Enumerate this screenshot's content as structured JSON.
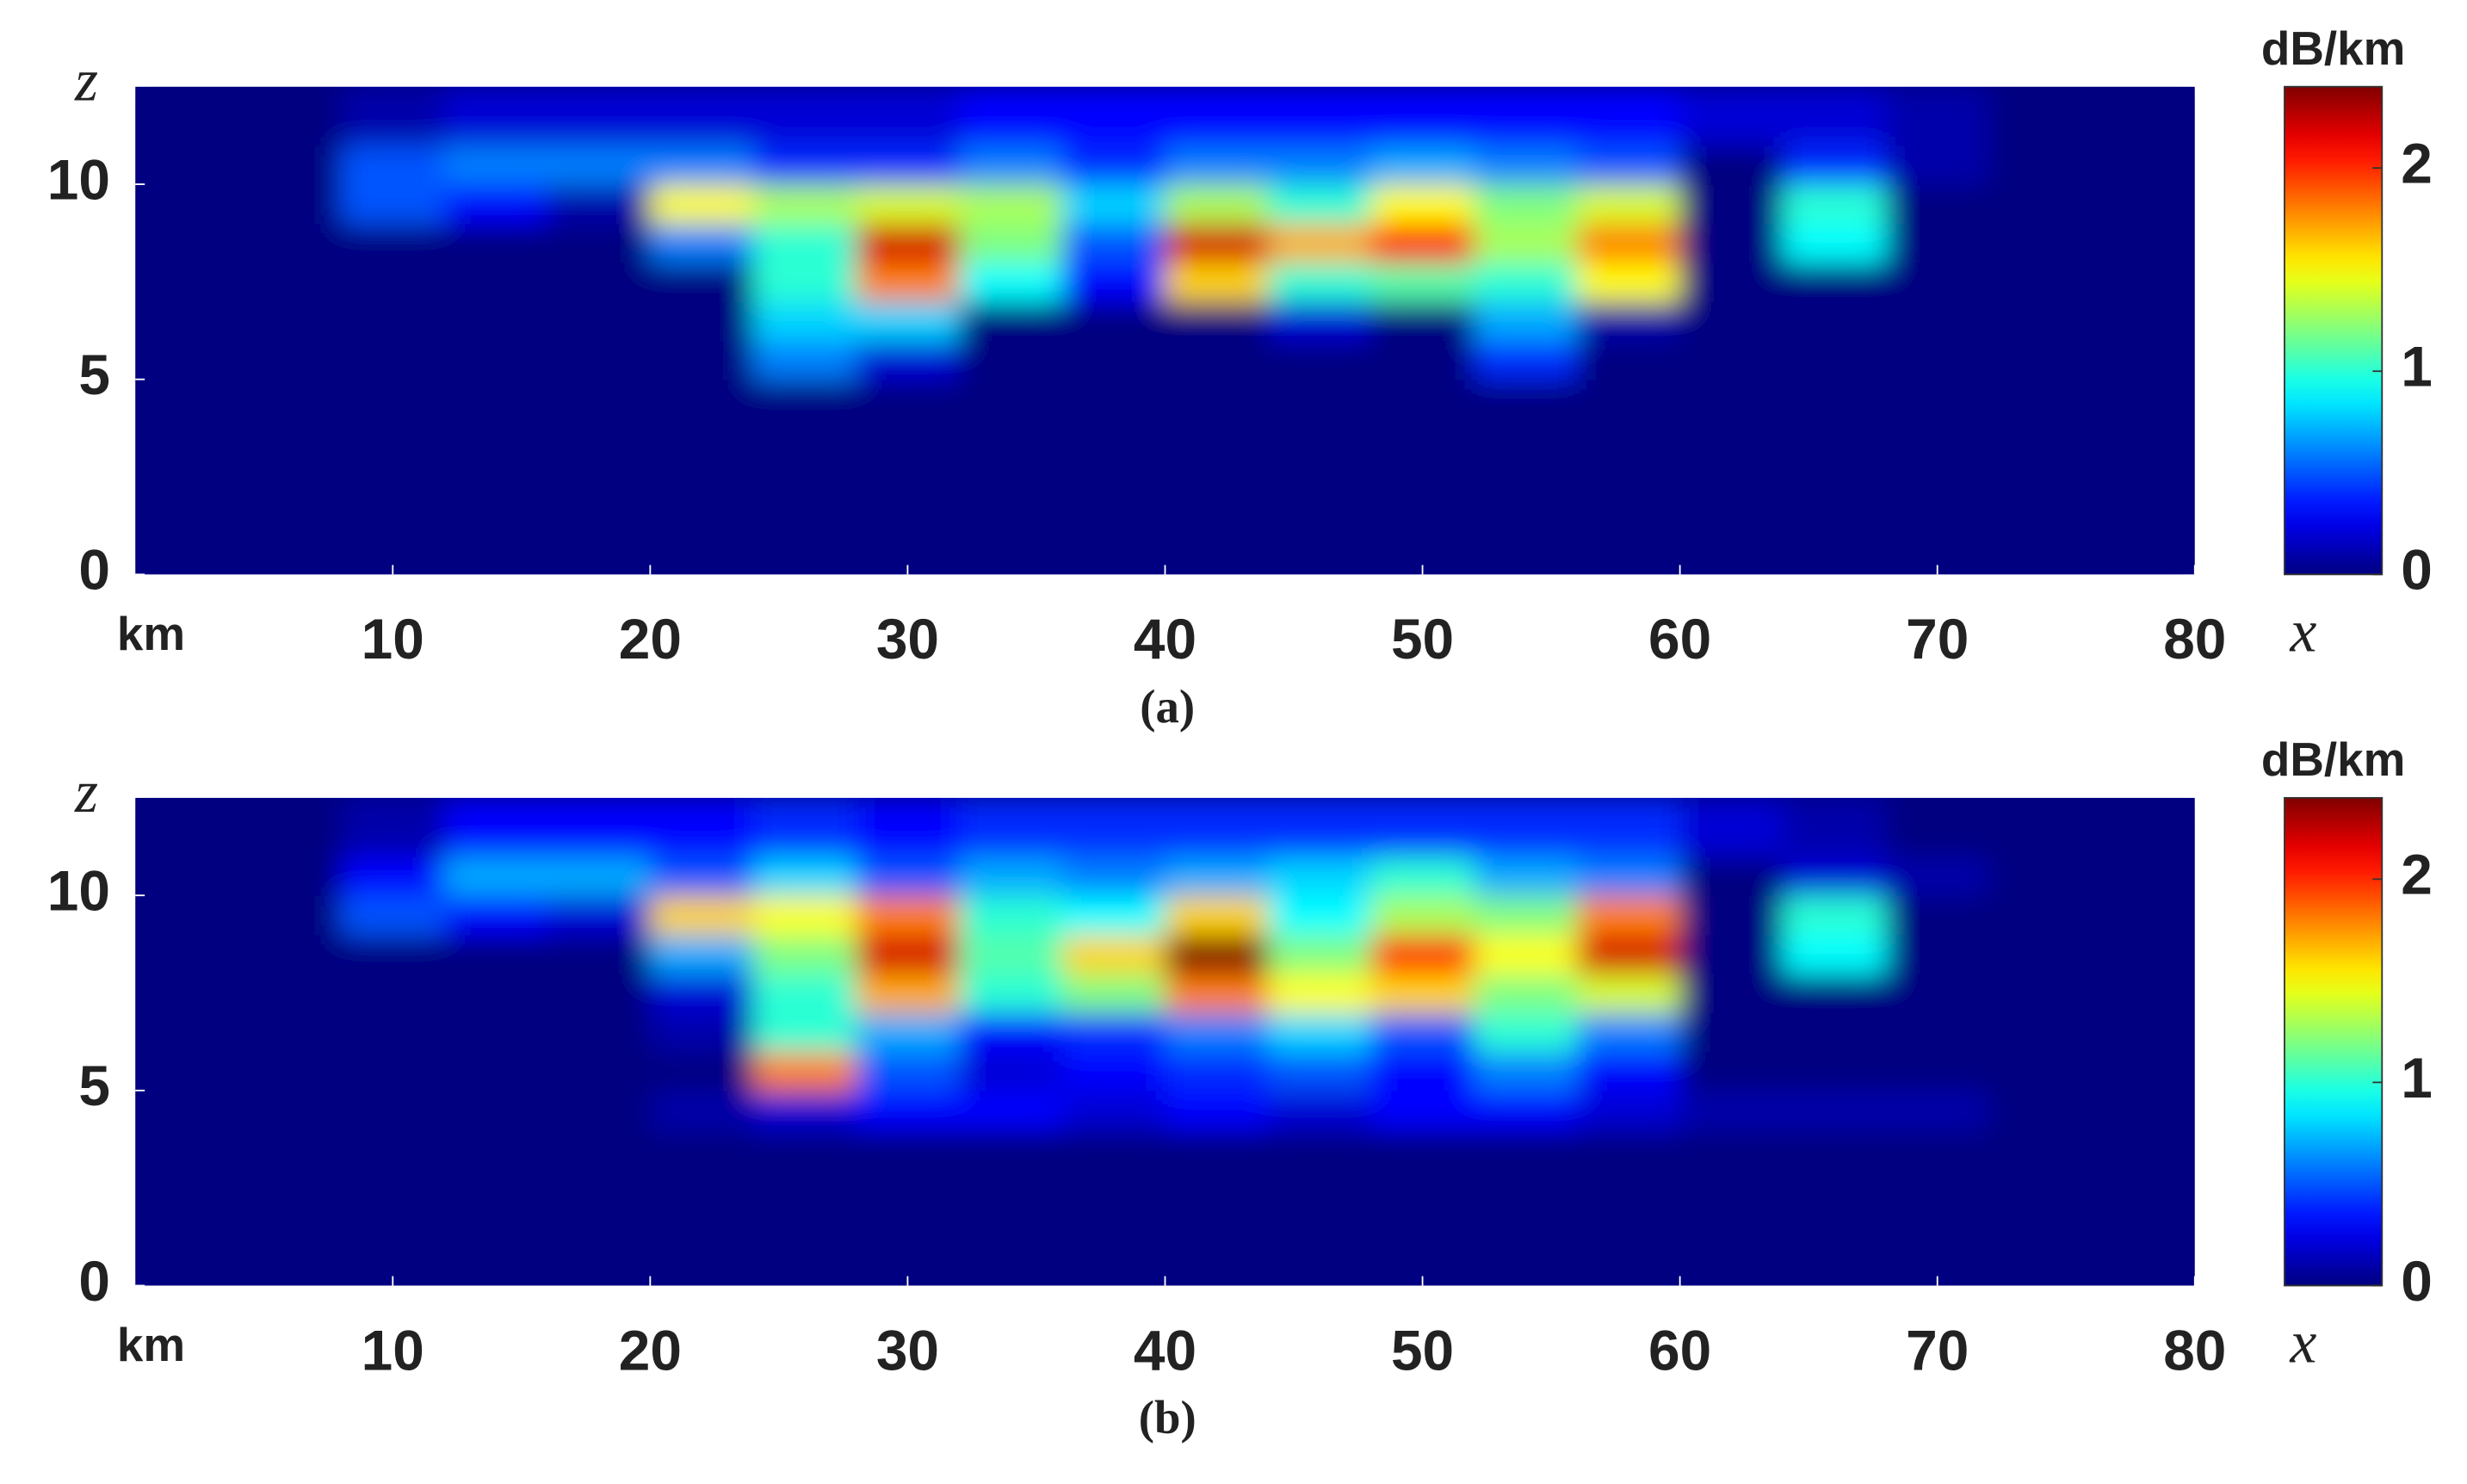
{
  "chart_data": [
    {
      "type": "heatmap",
      "caption": "(a)",
      "xlabel": "x",
      "xunit": "km",
      "ylabel": "z",
      "colorbar_label": "dB/km",
      "colormap": "jet",
      "xlim": [
        0,
        80
      ],
      "ylim": [
        0,
        12.5
      ],
      "xticks": [
        10,
        20,
        30,
        40,
        50,
        60,
        70,
        80
      ],
      "yticks": [
        0,
        5,
        10
      ],
      "clim": [
        0,
        2.4
      ],
      "cticks": [
        0,
        1,
        2
      ],
      "x_bins": [
        0,
        4,
        8,
        12,
        16,
        20,
        24,
        28,
        32,
        36,
        40,
        44,
        48,
        52,
        56,
        60,
        64,
        68,
        72,
        76,
        80
      ],
      "y_bins": [
        0,
        2,
        4,
        5,
        6,
        7,
        8,
        9,
        10,
        11,
        12.5
      ],
      "values": [
        [
          0,
          0,
          0,
          0,
          0,
          0,
          0,
          0,
          0,
          0,
          0,
          0,
          0,
          0,
          0,
          0,
          0,
          0,
          0,
          0
        ],
        [
          0,
          0,
          0,
          0,
          0,
          0,
          0,
          0,
          0,
          0,
          0,
          0,
          0,
          0,
          0,
          0,
          0,
          0,
          0,
          0
        ],
        [
          0,
          0,
          0,
          0,
          0,
          0,
          0,
          0,
          0,
          0,
          0,
          0,
          0,
          0,
          0,
          0,
          0,
          0,
          0,
          0
        ],
        [
          0,
          0,
          0,
          0,
          0,
          0,
          0.6,
          0.2,
          0,
          0,
          0,
          0,
          0,
          0.4,
          0,
          0,
          0,
          0,
          0,
          0
        ],
        [
          0,
          0,
          0,
          0,
          0,
          0,
          0.8,
          0.8,
          0,
          0,
          0,
          0.2,
          0,
          0.7,
          0.1,
          0,
          0,
          0,
          0,
          0
        ],
        [
          0,
          0,
          0,
          0,
          0,
          0,
          1.0,
          1.8,
          0.9,
          0.3,
          1.6,
          1.0,
          1.1,
          1.0,
          1.5,
          0,
          0,
          0,
          0,
          0
        ],
        [
          0,
          0,
          0,
          0,
          0,
          0.6,
          1.0,
          2.2,
          1.2,
          0.5,
          2.2,
          1.7,
          2.1,
          1.3,
          1.8,
          0,
          0.9,
          0,
          0,
          0
        ],
        [
          0,
          0,
          0.5,
          0.3,
          0.1,
          1.5,
          1.3,
          1.4,
          1.3,
          0.8,
          1.3,
          1.0,
          1.5,
          1.2,
          1.4,
          0,
          1.0,
          0,
          0,
          0
        ],
        [
          0,
          0,
          0.5,
          0.6,
          0.6,
          0.6,
          0.4,
          0.4,
          0.6,
          0.4,
          0.6,
          0.6,
          0.7,
          0.6,
          0.5,
          0,
          0.4,
          0.1,
          0,
          0
        ],
        [
          0,
          0,
          0.1,
          0.2,
          0.2,
          0.2,
          0.2,
          0.2,
          0.3,
          0.3,
          0.3,
          0.3,
          0.3,
          0.3,
          0.3,
          0.2,
          0.2,
          0.1,
          0,
          0
        ]
      ]
    },
    {
      "type": "heatmap",
      "caption": "(b)",
      "xlabel": "x",
      "xunit": "km",
      "ylabel": "z",
      "colorbar_label": "dB/km",
      "colormap": "jet",
      "xlim": [
        0,
        80
      ],
      "ylim": [
        0,
        12.5
      ],
      "xticks": [
        10,
        20,
        30,
        40,
        50,
        60,
        70,
        80
      ],
      "yticks": [
        0,
        5,
        10
      ],
      "clim": [
        0,
        2.4
      ],
      "cticks": [
        0,
        1,
        2
      ],
      "x_bins": [
        0,
        4,
        8,
        12,
        16,
        20,
        24,
        28,
        32,
        36,
        40,
        44,
        48,
        52,
        56,
        60,
        64,
        68,
        72,
        76,
        80
      ],
      "y_bins": [
        0,
        2,
        4,
        5,
        6,
        7,
        8,
        9,
        10,
        11,
        12.5
      ],
      "values": [
        [
          0,
          0,
          0,
          0,
          0,
          0,
          0,
          0,
          0,
          0,
          0,
          0,
          0,
          0,
          0,
          0,
          0,
          0,
          0,
          0
        ],
        [
          0,
          0,
          0,
          0,
          0,
          0,
          0,
          0,
          0,
          0,
          0,
          0,
          0,
          0,
          0,
          0,
          0,
          0,
          0,
          0
        ],
        [
          0,
          0,
          0,
          0,
          0,
          0.1,
          0.2,
          0.3,
          0.3,
          0.2,
          0.3,
          0.2,
          0.3,
          0.3,
          0.2,
          0.1,
          0.1,
          0.1,
          0,
          0
        ],
        [
          0,
          0,
          0,
          0,
          0,
          0,
          1.8,
          0.5,
          0.2,
          0.3,
          0.4,
          0.5,
          0.3,
          0.6,
          0.3,
          0,
          0,
          0,
          0,
          0
        ],
        [
          0,
          0,
          0,
          0,
          0,
          0.1,
          1.0,
          0.7,
          0.3,
          0.4,
          0.6,
          0.8,
          0.5,
          1.0,
          0.6,
          0,
          0,
          0,
          0,
          0
        ],
        [
          0,
          0,
          0,
          0,
          0,
          0.2,
          1.0,
          1.7,
          1.0,
          1.2,
          1.8,
          1.5,
          1.6,
          1.2,
          1.4,
          0,
          0,
          0,
          0,
          0
        ],
        [
          0,
          0,
          0,
          0,
          0,
          0.7,
          1.2,
          2.2,
          1.1,
          1.6,
          2.4,
          1.2,
          2.0,
          1.5,
          2.2,
          0,
          0.9,
          0,
          0,
          0
        ],
        [
          0,
          0,
          0.5,
          0.3,
          0.2,
          1.6,
          1.5,
          1.8,
          1.0,
          0.9,
          1.6,
          0.9,
          1.3,
          1.2,
          1.8,
          0,
          1.0,
          0,
          0,
          0
        ],
        [
          0,
          0,
          0.3,
          0.7,
          0.7,
          0.5,
          0.8,
          0.5,
          0.7,
          0.6,
          0.7,
          0.8,
          1.0,
          0.7,
          0.6,
          0,
          0.2,
          0.1,
          0,
          0
        ],
        [
          0,
          0,
          0.1,
          0.3,
          0.3,
          0.3,
          0.4,
          0.3,
          0.4,
          0.4,
          0.4,
          0.4,
          0.4,
          0.4,
          0.4,
          0.2,
          0.1,
          0,
          0,
          0
        ]
      ]
    }
  ]
}
